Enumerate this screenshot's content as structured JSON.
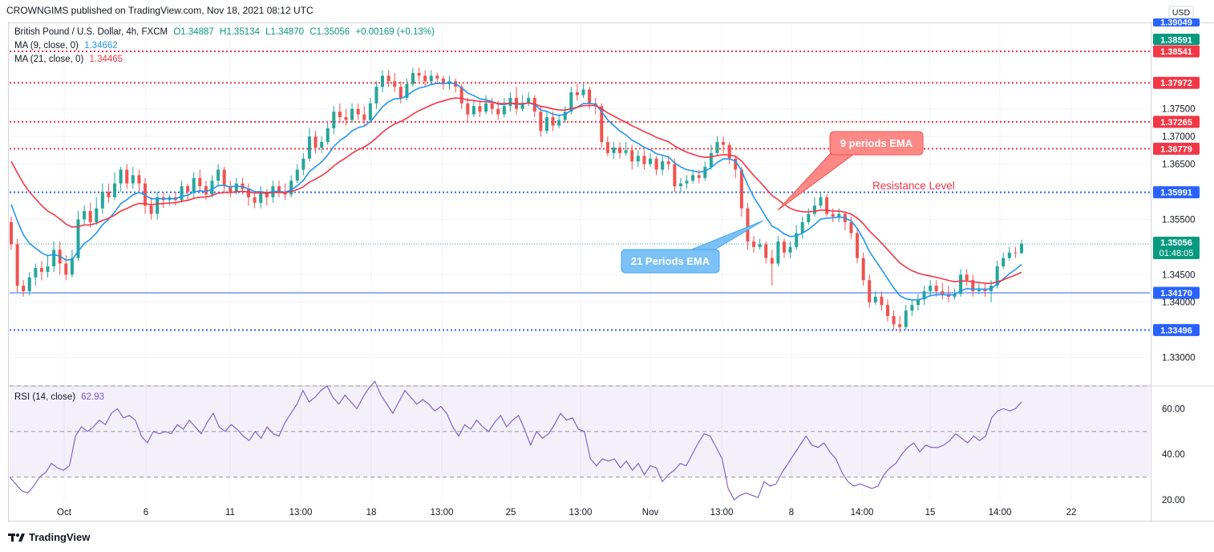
{
  "header": {
    "publisher_text": "CROWNGIMS published on TradingView.com, Nov 18, 2021 08:12 UTC"
  },
  "legend": {
    "symbol": "British Pound / U.S. Dollar, 4h, FXCM",
    "open": "O1.34887",
    "high": "H1.35134",
    "low": "L1.34870",
    "close": "C1.35056",
    "change": "+0.00169 (+0.13%)",
    "ma9_label": "MA (9, close, 0)",
    "ma9_value": "1.34662",
    "ma21_label": "MA (21, close, 0)",
    "ma21_value": "1.34465",
    "rsi_label": "RSI (14, close)",
    "rsi_value": "62.93"
  },
  "annotations": {
    "ema9": "9 periods EMA",
    "ema21": "21 Periods EMA",
    "resistance": "Resistance Level"
  },
  "footer": {
    "brand": "TradingView"
  },
  "colors": {
    "up": "#26a69a",
    "down": "#ef5350",
    "ma9": "#2196f3",
    "ma21": "#f23645",
    "blue_level": "#2962ff",
    "red_level": "#f23645",
    "rsi": "#7e57c2"
  },
  "chart_data": {
    "type": "candlestick",
    "ylim": [
      1.325,
      1.3905
    ],
    "y_ticks": [
      "1.37500",
      "1.37000",
      "1.36500",
      "1.35500",
      "1.34500",
      "1.34000",
      "1.33000"
    ],
    "x_ticks": [
      "Oct",
      "6",
      "11",
      "13:00",
      "18",
      "13:00",
      "25",
      "13:00",
      "Nov",
      "13:00",
      "8",
      "14:00",
      "15",
      "14:00",
      "22"
    ],
    "price_labels": [
      {
        "text": "1.39049",
        "role": "top"
      },
      {
        "text": "1.38591",
        "role": "top-green"
      },
      {
        "text": "USD",
        "role": "currency"
      },
      {
        "text": "1.38541",
        "value": 1.38541,
        "kind": "red"
      },
      {
        "text": "1.37972",
        "value": 1.37972,
        "kind": "red"
      },
      {
        "text": "1.37265",
        "value": 1.37265,
        "kind": "red"
      },
      {
        "text": "1.36779",
        "value": 1.36779,
        "kind": "red"
      },
      {
        "text": "1.35991",
        "value": 1.35991,
        "kind": "blue"
      },
      {
        "text": "1.35056",
        "value": 1.35056,
        "kind": "current",
        "sub": "01:48:05"
      },
      {
        "text": "1.34170",
        "value": 1.3417,
        "kind": "blue-solid"
      },
      {
        "text": "1.33496",
        "value": 1.33496,
        "kind": "blue"
      }
    ],
    "candles": [
      [
        1.3545,
        1.3505,
        1.3555,
        1.3495
      ],
      [
        1.3505,
        1.343,
        1.3515,
        1.3418
      ],
      [
        1.343,
        1.342,
        1.344,
        1.341
      ],
      [
        1.342,
        1.3445,
        1.3455,
        1.3412
      ],
      [
        1.3445,
        1.3462,
        1.347,
        1.343
      ],
      [
        1.3462,
        1.3455,
        1.3475,
        1.344
      ],
      [
        1.3455,
        1.3465,
        1.3485,
        1.3445
      ],
      [
        1.3465,
        1.3495,
        1.351,
        1.3455
      ],
      [
        1.3495,
        1.347,
        1.351,
        1.345
      ],
      [
        1.347,
        1.345,
        1.3485,
        1.344
      ],
      [
        1.345,
        1.348,
        1.3495,
        1.3445
      ],
      [
        1.348,
        1.355,
        1.3565,
        1.3475
      ],
      [
        1.355,
        1.3565,
        1.3575,
        1.354
      ],
      [
        1.3565,
        1.3545,
        1.358,
        1.3535
      ],
      [
        1.3545,
        1.357,
        1.359,
        1.354
      ],
      [
        1.357,
        1.36,
        1.3615,
        1.356
      ],
      [
        1.36,
        1.359,
        1.3615,
        1.358
      ],
      [
        1.359,
        1.3615,
        1.3635,
        1.3585
      ],
      [
        1.3615,
        1.364,
        1.3645,
        1.36
      ],
      [
        1.364,
        1.3615,
        1.365,
        1.3605
      ],
      [
        1.3615,
        1.363,
        1.3645,
        1.3605
      ],
      [
        1.363,
        1.3615,
        1.364,
        1.36
      ],
      [
        1.3615,
        1.3575,
        1.3625,
        1.356
      ],
      [
        1.3575,
        1.356,
        1.359,
        1.355
      ],
      [
        1.356,
        1.359,
        1.36,
        1.355
      ],
      [
        1.359,
        1.3585,
        1.36,
        1.357
      ],
      [
        1.3585,
        1.359,
        1.3595,
        1.3575
      ],
      [
        1.359,
        1.3585,
        1.36,
        1.3575
      ],
      [
        1.3585,
        1.361,
        1.362,
        1.358
      ],
      [
        1.361,
        1.36,
        1.3615,
        1.3585
      ],
      [
        1.36,
        1.3625,
        1.3635,
        1.359
      ],
      [
        1.3625,
        1.361,
        1.364,
        1.36
      ],
      [
        1.361,
        1.3595,
        1.362,
        1.3585
      ],
      [
        1.3595,
        1.362,
        1.363,
        1.359
      ],
      [
        1.362,
        1.364,
        1.365,
        1.361
      ],
      [
        1.364,
        1.361,
        1.3645,
        1.36
      ],
      [
        1.361,
        1.36,
        1.362,
        1.359
      ],
      [
        1.36,
        1.3615,
        1.3625,
        1.3595
      ],
      [
        1.3615,
        1.3605,
        1.3625,
        1.3595
      ],
      [
        1.3605,
        1.359,
        1.3615,
        1.3575
      ],
      [
        1.359,
        1.358,
        1.36,
        1.357
      ],
      [
        1.358,
        1.36,
        1.361,
        1.357
      ],
      [
        1.36,
        1.359,
        1.3605,
        1.3575
      ],
      [
        1.359,
        1.361,
        1.362,
        1.358
      ],
      [
        1.361,
        1.36,
        1.362,
        1.359
      ],
      [
        1.36,
        1.3595,
        1.3615,
        1.3585
      ],
      [
        1.3595,
        1.362,
        1.363,
        1.359
      ],
      [
        1.362,
        1.364,
        1.365,
        1.3615
      ],
      [
        1.364,
        1.366,
        1.367,
        1.363
      ],
      [
        1.366,
        1.37,
        1.3715,
        1.3655
      ],
      [
        1.37,
        1.368,
        1.371,
        1.367
      ],
      [
        1.368,
        1.369,
        1.37,
        1.367
      ],
      [
        1.369,
        1.3715,
        1.3725,
        1.3685
      ],
      [
        1.3715,
        1.3745,
        1.3755,
        1.3705
      ],
      [
        1.3745,
        1.3735,
        1.376,
        1.3725
      ],
      [
        1.3735,
        1.373,
        1.375,
        1.372
      ],
      [
        1.373,
        1.375,
        1.376,
        1.3725
      ],
      [
        1.375,
        1.374,
        1.376,
        1.373
      ],
      [
        1.374,
        1.373,
        1.3755,
        1.372
      ],
      [
        1.373,
        1.376,
        1.377,
        1.3725
      ],
      [
        1.376,
        1.379,
        1.38,
        1.375
      ],
      [
        1.379,
        1.381,
        1.382,
        1.378
      ],
      [
        1.381,
        1.38,
        1.382,
        1.379
      ],
      [
        1.38,
        1.379,
        1.3815,
        1.378
      ],
      [
        1.379,
        1.377,
        1.38,
        1.376
      ],
      [
        1.377,
        1.3795,
        1.3805,
        1.3765
      ],
      [
        1.3795,
        1.3815,
        1.3825,
        1.379
      ],
      [
        1.3815,
        1.381,
        1.3825,
        1.38
      ],
      [
        1.381,
        1.38,
        1.382,
        1.379
      ],
      [
        1.38,
        1.381,
        1.382,
        1.3795
      ],
      [
        1.381,
        1.3805,
        1.3815,
        1.3795
      ],
      [
        1.3805,
        1.3795,
        1.381,
        1.3785
      ],
      [
        1.3795,
        1.38,
        1.381,
        1.3785
      ],
      [
        1.38,
        1.379,
        1.3805,
        1.378
      ],
      [
        1.379,
        1.376,
        1.3795,
        1.375
      ],
      [
        1.376,
        1.374,
        1.377,
        1.3725
      ],
      [
        1.374,
        1.3755,
        1.3765,
        1.3735
      ],
      [
        1.3755,
        1.3745,
        1.3765,
        1.3735
      ],
      [
        1.3745,
        1.376,
        1.3775,
        1.374
      ],
      [
        1.376,
        1.375,
        1.377,
        1.374
      ],
      [
        1.375,
        1.374,
        1.3765,
        1.373
      ],
      [
        1.374,
        1.3755,
        1.377,
        1.3735
      ],
      [
        1.3755,
        1.377,
        1.378,
        1.3745
      ],
      [
        1.377,
        1.375,
        1.379,
        1.374
      ],
      [
        1.375,
        1.376,
        1.3775,
        1.3745
      ],
      [
        1.376,
        1.377,
        1.378,
        1.3755
      ],
      [
        1.377,
        1.3745,
        1.3775,
        1.3735
      ],
      [
        1.3745,
        1.371,
        1.3755,
        1.37
      ],
      [
        1.371,
        1.3735,
        1.3745,
        1.3705
      ],
      [
        1.3735,
        1.372,
        1.3745,
        1.371
      ],
      [
        1.372,
        1.373,
        1.374,
        1.3715
      ],
      [
        1.373,
        1.3745,
        1.3755,
        1.3725
      ],
      [
        1.3745,
        1.378,
        1.379,
        1.374
      ],
      [
        1.378,
        1.3775,
        1.3795,
        1.3765
      ],
      [
        1.3775,
        1.3785,
        1.3795,
        1.377
      ],
      [
        1.3785,
        1.376,
        1.379,
        1.375
      ],
      [
        1.376,
        1.3755,
        1.377,
        1.374
      ],
      [
        1.3755,
        1.369,
        1.376,
        1.368
      ],
      [
        1.369,
        1.367,
        1.37,
        1.3665
      ],
      [
        1.367,
        1.368,
        1.369,
        1.366
      ],
      [
        1.368,
        1.367,
        1.369,
        1.366
      ],
      [
        1.367,
        1.3675,
        1.369,
        1.3665
      ],
      [
        1.3675,
        1.3655,
        1.3685,
        1.364
      ],
      [
        1.3655,
        1.3665,
        1.3675,
        1.3645
      ],
      [
        1.3665,
        1.365,
        1.3675,
        1.364
      ],
      [
        1.365,
        1.366,
        1.367,
        1.3645
      ],
      [
        1.366,
        1.364,
        1.3665,
        1.363
      ],
      [
        1.364,
        1.3655,
        1.3665,
        1.363
      ],
      [
        1.3655,
        1.365,
        1.3665,
        1.364
      ],
      [
        1.365,
        1.361,
        1.366,
        1.36
      ],
      [
        1.361,
        1.3615,
        1.3625,
        1.36
      ],
      [
        1.3615,
        1.362,
        1.363,
        1.3605
      ],
      [
        1.362,
        1.363,
        1.364,
        1.3615
      ],
      [
        1.363,
        1.3625,
        1.364,
        1.3615
      ],
      [
        1.3625,
        1.3645,
        1.3655,
        1.362
      ],
      [
        1.3645,
        1.367,
        1.3685,
        1.364
      ],
      [
        1.367,
        1.369,
        1.37,
        1.3665
      ],
      [
        1.369,
        1.3685,
        1.37,
        1.367
      ],
      [
        1.3685,
        1.366,
        1.369,
        1.365
      ],
      [
        1.366,
        1.364,
        1.3665,
        1.3625
      ],
      [
        1.364,
        1.357,
        1.3645,
        1.3555
      ],
      [
        1.357,
        1.351,
        1.358,
        1.3495
      ],
      [
        1.351,
        1.35,
        1.352,
        1.349
      ],
      [
        1.35,
        1.3505,
        1.3515,
        1.3495
      ],
      [
        1.3505,
        1.348,
        1.351,
        1.347
      ],
      [
        1.348,
        1.347,
        1.3495,
        1.343
      ],
      [
        1.347,
        1.351,
        1.352,
        1.3465
      ],
      [
        1.351,
        1.349,
        1.3515,
        1.348
      ],
      [
        1.349,
        1.35,
        1.351,
        1.348
      ],
      [
        1.35,
        1.3525,
        1.354,
        1.3495
      ],
      [
        1.3525,
        1.3545,
        1.3555,
        1.3515
      ],
      [
        1.3545,
        1.356,
        1.357,
        1.354
      ],
      [
        1.356,
        1.3575,
        1.359,
        1.3555
      ],
      [
        1.3575,
        1.359,
        1.36,
        1.357
      ],
      [
        1.359,
        1.356,
        1.3595,
        1.3555
      ],
      [
        1.356,
        1.3555,
        1.357,
        1.3545
      ],
      [
        1.3555,
        1.356,
        1.357,
        1.3545
      ],
      [
        1.356,
        1.3545,
        1.3565,
        1.353
      ],
      [
        1.3545,
        1.3525,
        1.3555,
        1.3515
      ],
      [
        1.3525,
        1.348,
        1.3535,
        1.347
      ],
      [
        1.348,
        1.344,
        1.349,
        1.343
      ],
      [
        1.344,
        1.34,
        1.345,
        1.339
      ],
      [
        1.34,
        1.341,
        1.342,
        1.3395
      ],
      [
        1.341,
        1.3395,
        1.342,
        1.3385
      ],
      [
        1.3395,
        1.3375,
        1.3405,
        1.3365
      ],
      [
        1.3375,
        1.336,
        1.3385,
        1.335
      ],
      [
        1.336,
        1.3355,
        1.3375,
        1.3345
      ],
      [
        1.3355,
        1.3385,
        1.3395,
        1.335
      ],
      [
        1.3385,
        1.3395,
        1.3405,
        1.3375
      ],
      [
        1.3395,
        1.3405,
        1.3415,
        1.3385
      ],
      [
        1.3405,
        1.342,
        1.343,
        1.3395
      ],
      [
        1.342,
        1.343,
        1.344,
        1.341
      ],
      [
        1.343,
        1.342,
        1.344,
        1.341
      ],
      [
        1.342,
        1.3415,
        1.3435,
        1.3405
      ],
      [
        1.3415,
        1.341,
        1.343,
        1.34
      ],
      [
        1.341,
        1.3415,
        1.3425,
        1.3405
      ],
      [
        1.3415,
        1.345,
        1.346,
        1.341
      ],
      [
        1.345,
        1.344,
        1.346,
        1.343
      ],
      [
        1.344,
        1.342,
        1.345,
        1.341
      ],
      [
        1.342,
        1.3425,
        1.3435,
        1.3415
      ],
      [
        1.3425,
        1.342,
        1.3435,
        1.341
      ],
      [
        1.342,
        1.343,
        1.344,
        1.34
      ],
      [
        1.343,
        1.3465,
        1.3475,
        1.3425
      ],
      [
        1.3465,
        1.348,
        1.349,
        1.346
      ],
      [
        1.348,
        1.349,
        1.35,
        1.3475
      ],
      [
        1.349,
        1.3489,
        1.35,
        1.348
      ],
      [
        1.3489,
        1.3506,
        1.3513,
        1.3487
      ]
    ],
    "rsi": [
      30,
      27,
      24,
      23,
      26,
      30,
      32,
      36,
      34,
      33,
      35,
      48,
      52,
      50,
      52,
      55,
      53,
      58,
      60,
      56,
      57,
      55,
      48,
      45,
      50,
      49,
      50,
      49,
      53,
      51,
      55,
      52,
      49,
      54,
      58,
      52,
      50,
      53,
      51,
      48,
      46,
      50,
      47,
      52,
      49,
      48,
      54,
      58,
      62,
      68,
      63,
      65,
      68,
      70,
      65,
      62,
      66,
      63,
      60,
      65,
      69,
      72,
      66,
      62,
      58,
      63,
      68,
      65,
      62,
      64,
      62,
      59,
      61,
      58,
      52,
      48,
      53,
      51,
      55,
      52,
      50,
      54,
      57,
      52,
      55,
      57,
      51,
      44,
      50,
      47,
      49,
      53,
      58,
      55,
      56,
      51,
      50,
      38,
      35,
      38,
      37,
      38,
      34,
      37,
      33,
      36,
      31,
      35,
      34,
      28,
      31,
      33,
      36,
      35,
      40,
      45,
      49,
      48,
      43,
      38,
      25,
      20,
      22,
      23,
      22,
      21,
      28,
      26,
      27,
      32,
      36,
      40,
      44,
      48,
      44,
      43,
      45,
      41,
      38,
      32,
      28,
      26,
      27,
      26,
      25,
      26,
      31,
      34,
      36,
      40,
      43,
      45,
      41,
      44,
      43,
      43,
      44,
      46,
      49,
      47,
      45,
      48,
      46,
      48,
      56,
      59,
      60,
      59,
      60,
      63
    ]
  }
}
